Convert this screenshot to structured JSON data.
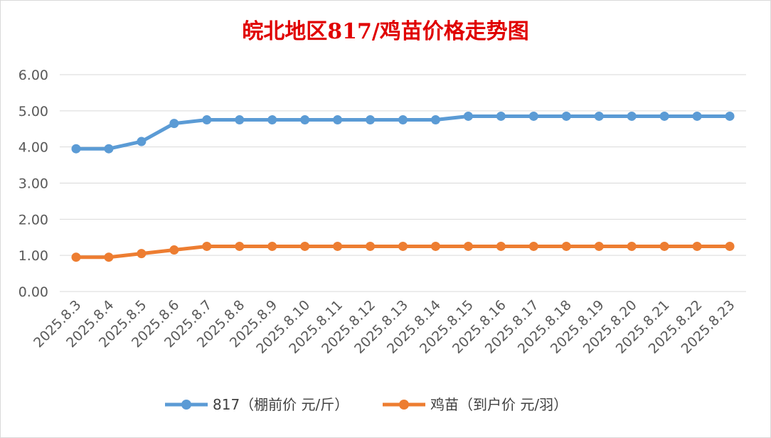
{
  "chart_data": {
    "type": "line",
    "title": "皖北地区817/鸡苗价格走势图",
    "xlabel": "",
    "ylabel": "",
    "categories": [
      "2025.8.3",
      "2025.8.4",
      "2025.8.5",
      "2025.8.6",
      "2025.8.7",
      "2025.8.8",
      "2025.8.9",
      "2025.8.10",
      "2025.8.11",
      "2025.8.12",
      "2025.8.13",
      "2025.8.14",
      "2025.8.15",
      "2025.8.16",
      "2025.8.17",
      "2025.8.18",
      "2025.8.19",
      "2025.8.20",
      "2025.8.21",
      "2025.8.22",
      "2025.8.23"
    ],
    "ylim": [
      0,
      6
    ],
    "yticks": [
      "0.00",
      "1.00",
      "2.00",
      "3.00",
      "4.00",
      "5.00",
      "6.00"
    ],
    "grid": true,
    "legend_position": "bottom",
    "series": [
      {
        "name": "817（棚前价 元/斤）",
        "color": "#5b9bd5",
        "values": [
          3.95,
          3.95,
          4.15,
          4.65,
          4.75,
          4.75,
          4.75,
          4.75,
          4.75,
          4.75,
          4.75,
          4.75,
          4.85,
          4.85,
          4.85,
          4.85,
          4.85,
          4.85,
          4.85,
          4.85,
          4.85
        ]
      },
      {
        "name": "鸡苗（到户价 元/羽）",
        "color": "#ed7d31",
        "values": [
          0.95,
          0.95,
          1.05,
          1.15,
          1.25,
          1.25,
          1.25,
          1.25,
          1.25,
          1.25,
          1.25,
          1.25,
          1.25,
          1.25,
          1.25,
          1.25,
          1.25,
          1.25,
          1.25,
          1.25,
          1.25
        ]
      }
    ]
  }
}
